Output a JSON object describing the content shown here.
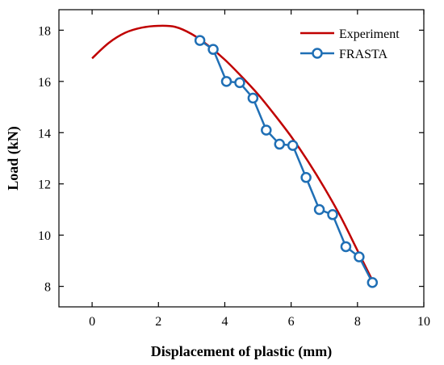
{
  "chart_data": {
    "type": "line",
    "xlabel": "Displacement of plastic (mm)",
    "ylabel": "Load (kN)",
    "xlim": [
      -1,
      10
    ],
    "ylim": [
      7.2,
      18.8
    ],
    "xticks": [
      0,
      2,
      4,
      6,
      8,
      10
    ],
    "yticks": [
      8,
      10,
      12,
      14,
      16,
      18
    ],
    "legend_position": "top-right",
    "grid": false,
    "series": [
      {
        "name": "Experiment",
        "color": "#c00000",
        "marker": "none",
        "x": [
          0,
          0.5,
          1.0,
          1.5,
          2.0,
          2.5,
          3.0,
          3.5,
          4.0,
          4.5,
          5.0,
          5.5,
          6.0,
          6.5,
          7.0,
          7.5,
          8.0,
          8.5
        ],
        "y": [
          16.9,
          17.5,
          17.9,
          18.1,
          18.17,
          18.13,
          17.85,
          17.4,
          16.85,
          16.2,
          15.5,
          14.7,
          13.85,
          12.9,
          11.85,
          10.7,
          9.4,
          8.1
        ]
      },
      {
        "name": "FRASTA",
        "color": "#1f6fb5",
        "marker": "circle",
        "x": [
          3.25,
          3.65,
          4.05,
          4.45,
          4.85,
          5.25,
          5.65,
          6.05,
          6.45,
          6.85,
          7.25,
          7.65,
          8.05,
          8.45
        ],
        "y": [
          17.6,
          17.25,
          16.0,
          15.95,
          15.35,
          14.1,
          13.55,
          13.5,
          12.25,
          11.0,
          10.8,
          9.55,
          9.15,
          8.15
        ]
      }
    ]
  }
}
